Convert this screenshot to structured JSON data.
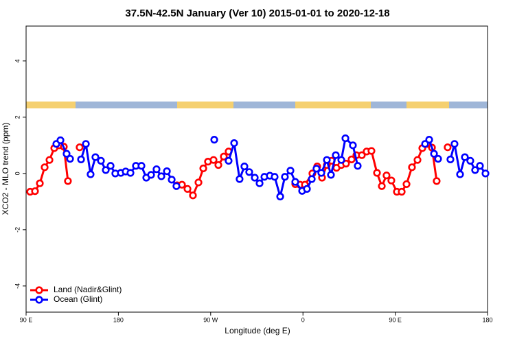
{
  "chart_data": {
    "type": "line",
    "title": "37.5N-42.5N January (Ver 10)   2015-01-01 to 2020-12-18",
    "xlabel": "Longitude (deg E)",
    "ylabel": "XCO2 - MLO trend (ppm)",
    "xlim": [
      90,
      540
    ],
    "ylim": [
      -4.93,
      5.24
    ],
    "xticks": [
      {
        "value": 90,
        "label": "90 E"
      },
      180,
      {
        "value": 270,
        "label": "90 W"
      },
      {
        "value": 360,
        "label": "0"
      },
      {
        "value": 450,
        "label": "90 E"
      },
      {
        "value": 540,
        "label": "180"
      }
    ],
    "yticks": [
      -4,
      -2,
      0,
      2,
      4
    ],
    "legend": "bottomleft",
    "series": [
      {
        "name": "Land (Nadir&Glint)",
        "color": "#ff0000",
        "x": [
          94.0,
          98.7,
          103.4,
          108.1,
          112.8,
          117.5,
          122.1,
          126.8,
          130.8,
          136.2,
          142.2,
          191.8,
          237.3,
          242.0,
          247.4,
          252.7,
          258.1,
          262.8,
          267.4,
          272.8,
          277.5,
          282.8,
          287.5,
          319.0,
          352.5,
          357.2,
          361.9,
          369.2,
          373.9,
          378.6,
          383.3,
          388.0,
          392.7,
          397.4,
          402.0,
          407.4,
          412.1,
          417.4,
          422.1,
          426.8,
          432.2,
          436.9,
          441.5,
          446.2,
          451.6,
          456.3,
          461.0,
          466.3,
          471.7,
          476.4,
          481.1,
          485.8,
          490.4,
          495.8,
          501.1
        ],
        "values": [
          -0.65,
          -0.63,
          -0.35,
          0.22,
          0.48,
          0.9,
          1.0,
          0.95,
          -0.27,
          null,
          0.93,
          null,
          -0.42,
          -0.4,
          -0.55,
          -0.78,
          -0.32,
          0.18,
          0.42,
          0.48,
          0.3,
          0.6,
          0.78,
          null,
          -0.38,
          -0.4,
          -0.4,
          0.0,
          0.25,
          -0.15,
          0.3,
          0.45,
          0.2,
          0.3,
          0.35,
          0.5,
          0.65,
          0.65,
          0.78,
          0.8,
          0.02,
          -0.45,
          -0.07,
          -0.25,
          -0.65,
          -0.65,
          -0.38,
          0.22,
          0.48,
          0.9,
          1.05,
          0.92,
          -0.27,
          null,
          0.93
        ]
      },
      {
        "name": "Ocean (Glint)",
        "color": "#0000ff",
        "x": [
          119.5,
          123.5,
          129.5,
          132.9,
          138.2,
          143.6,
          148.3,
          152.9,
          157.6,
          163.0,
          167.7,
          172.4,
          177.0,
          182.4,
          187.1,
          191.8,
          197.1,
          202.5,
          207.2,
          211.9,
          217.2,
          221.9,
          227.3,
          232.0,
          236.6,
          255.4,
          273.5,
          280.2,
          287.5,
          292.9,
          298.2,
          302.9,
          307.6,
          313.0,
          317.7,
          322.4,
          327.7,
          332.4,
          337.8,
          342.4,
          347.8,
          352.5,
          359.2,
          363.9,
          368.6,
          373.2,
          377.9,
          383.3,
          387.3,
          392.0,
          397.4,
          401.4,
          408.7,
          413.4,
          446.2,
          479.1,
          483.1,
          487.8,
          491.8,
          497.8,
          503.8,
          507.8,
          513.2,
          517.9,
          523.2,
          527.9,
          532.6,
          538.0
        ],
        "values": [
          1.05,
          1.18,
          0.7,
          0.52,
          null,
          0.5,
          1.05,
          -0.03,
          0.58,
          0.45,
          0.12,
          0.27,
          0.0,
          0.02,
          0.07,
          0.02,
          0.27,
          0.27,
          -0.15,
          -0.05,
          0.15,
          -0.1,
          0.08,
          -0.22,
          -0.45,
          null,
          1.2,
          null,
          0.45,
          1.08,
          -0.2,
          0.25,
          0.05,
          -0.15,
          -0.35,
          -0.12,
          -0.08,
          -0.12,
          -0.82,
          -0.12,
          0.1,
          -0.3,
          -0.62,
          -0.55,
          -0.2,
          0.17,
          0.02,
          0.48,
          -0.05,
          0.65,
          0.48,
          1.25,
          1.0,
          0.27,
          null,
          1.05,
          1.2,
          0.7,
          0.52,
          null,
          0.5,
          1.05,
          -0.03,
          0.58,
          0.45,
          0.12,
          0.27,
          0.0
        ]
      }
    ]
  }
}
